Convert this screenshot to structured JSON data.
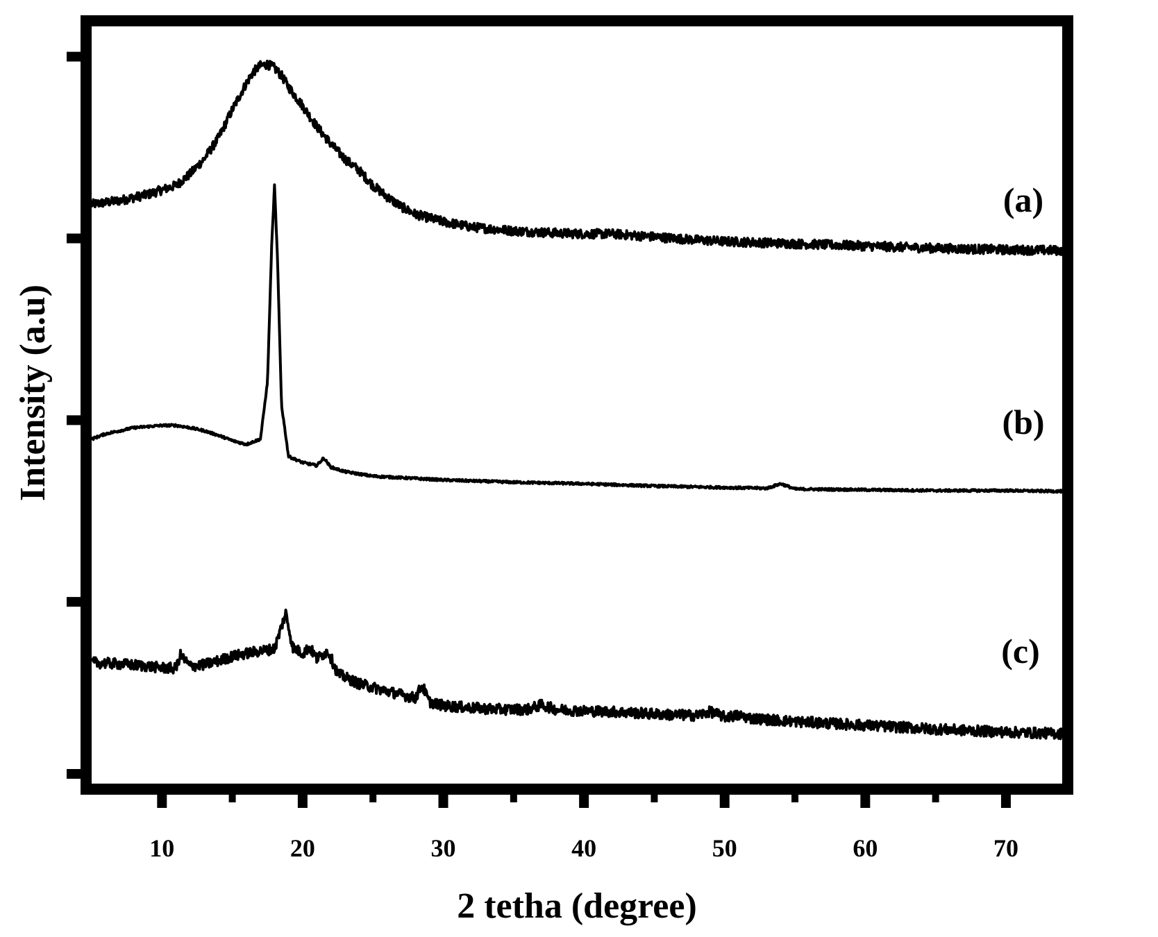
{
  "chart_data": {
    "type": "line",
    "title": "",
    "xlabel": "2 tetha (degree)",
    "ylabel": "Intensity (a.u)",
    "xlim": [
      5,
      74
    ],
    "ylim": [
      0,
      1
    ],
    "x_ticks": [
      10,
      20,
      30,
      40,
      50,
      60,
      70
    ],
    "x_tick_labels": [
      "10",
      "20",
      "30",
      "40",
      "50",
      "60",
      "70"
    ],
    "y_ticks": [
      0,
      0.24,
      0.48,
      0.72,
      0.96
    ],
    "y_tick_labels_shown": false,
    "grid": false,
    "line_color": "#000000",
    "series": [
      {
        "name": "(a)",
        "x": [
          5,
          7,
          9,
          11,
          12,
          13,
          14,
          15,
          16,
          16.5,
          17,
          17.5,
          18,
          18.5,
          19,
          20,
          21,
          22,
          23,
          24,
          25,
          26,
          27,
          28,
          30,
          32,
          35,
          38,
          40,
          42,
          45,
          48,
          50,
          55,
          60,
          65,
          70,
          74
        ],
        "y": [
          0.765,
          0.77,
          0.778,
          0.79,
          0.805,
          0.825,
          0.852,
          0.89,
          0.925,
          0.94,
          0.948,
          0.95,
          0.945,
          0.935,
          0.92,
          0.895,
          0.868,
          0.845,
          0.825,
          0.81,
          0.79,
          0.775,
          0.762,
          0.752,
          0.742,
          0.735,
          0.73,
          0.727,
          0.726,
          0.726,
          0.722,
          0.718,
          0.716,
          0.713,
          0.71,
          0.707,
          0.705,
          0.704
        ]
      },
      {
        "name": "(b)",
        "x": [
          5,
          6,
          8,
          10,
          11,
          12,
          13,
          14,
          15,
          16,
          17,
          17.5,
          17.8,
          18,
          18.2,
          18.5,
          19,
          20,
          21,
          21.5,
          22,
          23,
          25,
          30,
          35,
          40,
          45,
          50,
          53,
          54,
          55,
          60,
          65,
          70,
          74
        ],
        "y": [
          0.455,
          0.462,
          0.47,
          0.473,
          0.473,
          0.47,
          0.466,
          0.46,
          0.453,
          0.448,
          0.455,
          0.53,
          0.71,
          0.79,
          0.7,
          0.5,
          0.432,
          0.424,
          0.42,
          0.43,
          0.418,
          0.412,
          0.406,
          0.401,
          0.398,
          0.396,
          0.393,
          0.391,
          0.39,
          0.396,
          0.389,
          0.388,
          0.387,
          0.387,
          0.386
        ]
      },
      {
        "name": "(c)",
        "x": [
          5,
          7,
          9,
          10,
          11,
          11.3,
          12,
          13,
          14,
          15,
          16,
          17,
          18,
          18.8,
          19.3,
          20,
          20.5,
          21,
          21.8,
          22.5,
          24,
          26,
          28,
          28.5,
          29,
          30,
          32,
          34,
          36,
          37,
          38,
          40,
          42,
          44,
          46,
          48,
          49,
          50,
          51,
          52,
          55,
          60,
          65,
          70,
          74
        ],
        "y": [
          0.16,
          0.158,
          0.155,
          0.153,
          0.152,
          0.17,
          0.155,
          0.157,
          0.162,
          0.168,
          0.172,
          0.175,
          0.178,
          0.225,
          0.18,
          0.172,
          0.18,
          0.165,
          0.175,
          0.145,
          0.132,
          0.122,
          0.113,
          0.13,
          0.108,
          0.103,
          0.1,
          0.098,
          0.098,
          0.104,
          0.098,
          0.096,
          0.095,
          0.093,
          0.091,
          0.09,
          0.095,
          0.088,
          0.09,
          0.086,
          0.082,
          0.077,
          0.072,
          0.068,
          0.066
        ]
      }
    ]
  }
}
